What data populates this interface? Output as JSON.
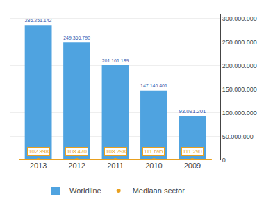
{
  "chart_data": {
    "type": "bar",
    "categories": [
      "2013",
      "2012",
      "2011",
      "2010",
      "2009"
    ],
    "series": [
      {
        "name": "Worldline",
        "type": "bar",
        "color": "#4fa3e0",
        "values": [
          286251142,
          249366790,
          201161189,
          147146401,
          93091201
        ],
        "value_labels": [
          "286.251.142",
          "249.366.790",
          "201.161.189",
          "147.146.401",
          "93.091.201"
        ]
      },
      {
        "name": "Mediaan sector",
        "type": "scatter",
        "marker": "circle",
        "color": "#e8a020",
        "values": [
          102898,
          108470,
          108298,
          111695,
          111290
        ],
        "value_labels": [
          "102.898",
          "108.470",
          "108.298",
          "111.695",
          "111.290"
        ]
      }
    ],
    "ylim": [
      0,
      310000000
    ],
    "yticks": [
      0,
      {
        "value": 50000000,
        "label": "50.000.000"
      },
      {
        "value": 100000000,
        "label": "100.000.000"
      },
      {
        "value": 150000000,
        "label": "150.000.000"
      },
      {
        "value": 200000000,
        "label": "200.000.000"
      },
      {
        "value": 250000000,
        "label": "250.000.000"
      },
      {
        "value": 300000000,
        "label": "300.000.000"
      }
    ],
    "grid": true,
    "legend": "bottom",
    "data_labels": true
  }
}
